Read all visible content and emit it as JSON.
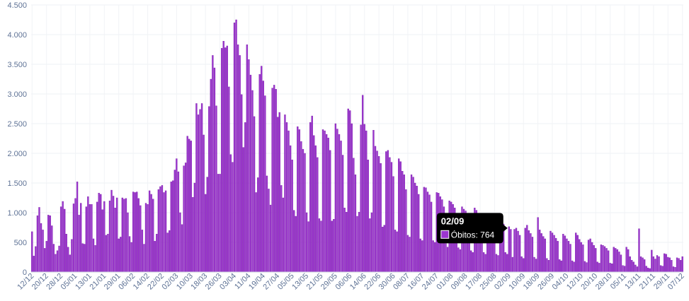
{
  "chart_data": {
    "type": "bar",
    "color": "#9b35cf",
    "ylim": [
      0,
      4500
    ],
    "yticks": [
      0,
      500,
      {
        "value": 1000,
        "label": "1.000"
      },
      {
        "value": 1500,
        "label": "1.500"
      },
      {
        "value": 2000,
        "label": "2.000"
      },
      {
        "value": 2500,
        "label": "2.500"
      },
      {
        "value": 3000,
        "label": "3.000"
      },
      {
        "value": 3500,
        "label": "3.500"
      },
      {
        "value": 4000,
        "label": "4.000"
      },
      {
        "value": 4500,
        "label": "4.500"
      }
    ],
    "grid": true,
    "tooltip": {
      "date": "02/09",
      "text": "Óbitos: 764",
      "index": 264
    },
    "categories": [
      "12/12",
      null,
      null,
      null,
      null,
      null,
      null,
      null,
      "20/12",
      null,
      null,
      null,
      null,
      null,
      null,
      null,
      "28/12",
      null,
      null,
      null,
      null,
      null,
      null,
      null,
      "05/01",
      null,
      null,
      null,
      null,
      null,
      null,
      null,
      "13/01",
      null,
      null,
      null,
      null,
      null,
      null,
      null,
      "21/01",
      null,
      null,
      null,
      null,
      null,
      null,
      null,
      "29/01",
      null,
      null,
      null,
      null,
      null,
      null,
      null,
      "06/02",
      null,
      null,
      null,
      null,
      null,
      null,
      null,
      "14/02",
      null,
      null,
      null,
      null,
      null,
      null,
      null,
      "22/02",
      null,
      null,
      null,
      null,
      null,
      null,
      null,
      "02/03",
      null,
      null,
      null,
      null,
      null,
      null,
      null,
      "10/03",
      null,
      null,
      null,
      null,
      null,
      null,
      null,
      "18/03",
      null,
      null,
      null,
      null,
      null,
      null,
      null,
      "26/03",
      null,
      null,
      null,
      null,
      null,
      null,
      null,
      "03/04",
      null,
      null,
      null,
      null,
      null,
      null,
      null,
      "11/04",
      null,
      null,
      null,
      null,
      null,
      null,
      null,
      "19/04",
      null,
      null,
      null,
      null,
      null,
      null,
      null,
      "27/04",
      null,
      null,
      null,
      null,
      null,
      null,
      null,
      "05/05",
      null,
      null,
      null,
      null,
      null,
      null,
      null,
      "13/05",
      null,
      null,
      null,
      null,
      null,
      null,
      null,
      "21/05",
      null,
      null,
      null,
      null,
      null,
      null,
      null,
      "29/05",
      null,
      null,
      null,
      null,
      null,
      null,
      null,
      "06/06",
      null,
      null,
      null,
      null,
      null,
      null,
      null,
      "14/06",
      null,
      null,
      null,
      null,
      null,
      null,
      null,
      "22/06",
      null,
      null,
      null,
      null,
      null,
      null,
      null,
      "30/06",
      null,
      null,
      null,
      null,
      null,
      null,
      null,
      "08/07",
      null,
      null,
      null,
      null,
      null,
      null,
      null,
      "16/07",
      null,
      null,
      null,
      null,
      null,
      null,
      null,
      "24/07",
      null,
      null,
      null,
      null,
      null,
      null,
      null,
      "01/08",
      null,
      null,
      null,
      null,
      null,
      null,
      null,
      "09/08",
      null,
      null,
      null,
      null,
      null,
      null,
      null,
      "17/08",
      null,
      null,
      null,
      null,
      null,
      null,
      null,
      "25/08",
      null,
      null,
      null,
      null,
      null,
      null,
      null,
      "02/09",
      null,
      null,
      null,
      null,
      null,
      null,
      null,
      "10/09",
      null,
      null,
      null,
      null,
      null,
      null,
      null,
      "18/09",
      null,
      null,
      null,
      null,
      null,
      null,
      null,
      "26/09",
      null,
      null,
      null,
      null,
      null,
      null,
      null,
      "04/10",
      null,
      null,
      null,
      null,
      null,
      null,
      null,
      "12/10",
      null,
      null,
      null,
      null,
      null,
      null,
      null,
      "20/10",
      null,
      null,
      null,
      null,
      null,
      null,
      null,
      "28/10",
      null,
      null,
      null,
      null,
      null,
      null,
      null,
      "05/11",
      null,
      null,
      null,
      null,
      null,
      null,
      null,
      "13/11",
      null,
      null,
      null,
      null,
      null,
      null,
      null,
      "21/11",
      null,
      null,
      null,
      null,
      null,
      null,
      null,
      "29/11",
      null,
      null,
      null,
      null,
      null,
      null,
      null,
      "07/12"
    ],
    "values": [
      680,
      270,
      430,
      950,
      1090,
      820,
      710,
      400,
      520,
      960,
      950,
      780,
      470,
      300,
      360,
      440,
      1100,
      1190,
      1060,
      640,
      420,
      290,
      550,
      1150,
      1240,
      1520,
      960,
      1160,
      480,
      470,
      1100,
      1270,
      1140,
      1140,
      560,
      450,
      1180,
      1330,
      1310,
      1050,
      1190,
      620,
      640,
      1200,
      1380,
      1280,
      1080,
      1250,
      560,
      590,
      1250,
      1230,
      1240,
      1000,
      600,
      500,
      1350,
      1340,
      1350,
      1240,
      1120,
      710,
      470,
      1160,
      1140,
      1370,
      1310,
      1230,
      520,
      640,
      1390,
      1440,
      1460,
      1340,
      1370,
      660,
      700,
      1520,
      1540,
      1720,
      1910,
      1690,
      1000,
      800,
      1790,
      1840,
      2290,
      2240,
      2210,
      1260,
      1500,
      2840,
      2650,
      2740,
      2840,
      2310,
      1310,
      1600,
      2790,
      3250,
      3650,
      3440,
      2800,
      1650,
      1650,
      3770,
      3890,
      3780,
      3810,
      3120,
      1980,
      1850,
      4200,
      4250,
      3830,
      3650,
      2990,
      2100,
      2520,
      3830,
      3580,
      3320,
      3060,
      2620,
      1340,
      1590,
      3330,
      3470,
      3220,
      2970,
      1620,
      1400,
      1130,
      3100,
      3150,
      3080,
      2610,
      2690,
      1460,
      1250,
      2650,
      2520,
      2380,
      2130,
      1890,
      1040,
      940,
      2450,
      2400,
      2200,
      2070,
      2000,
      1000,
      850,
      2520,
      2630,
      2300,
      2130,
      1930,
      900,
      860,
      2400,
      2380,
      2320,
      2260,
      2050,
      860,
      890,
      2500,
      2410,
      2320,
      2210,
      1970,
      1080,
      1010,
      2750,
      2720,
      2500,
      1920,
      1640,
      940,
      1010,
      2480,
      2980,
      2490,
      2380,
      1890,
      900,
      1000,
      2390,
      2120,
      2040,
      1950,
      1830,
      760,
      790,
      2030,
      2050,
      1930,
      1850,
      1610,
      710,
      680,
      1910,
      1860,
      1700,
      1640,
      1390,
      620,
      590,
      1640,
      1600,
      1500,
      1450,
      1310,
      560,
      530,
      1430,
      1420,
      1350,
      1300,
      1180,
      530,
      500,
      1340,
      1330,
      1270,
      1220,
      1100,
      480,
      420,
      1200,
      1180,
      1140,
      1080,
      950,
      410,
      380,
      1100,
      1060,
      1030,
      970,
      880,
      360,
      330,
      1080,
      1040,
      970,
      900,
      830,
      330,
      300,
      960,
      930,
      880,
      830,
      760,
      300,
      280,
      900,
      860,
      810,
      330,
      300,
      764,
      720,
      250,
      720,
      740,
      690,
      620,
      260,
      230,
      740,
      790,
      700,
      650,
      590,
      250,
      220,
      920,
      710,
      650,
      600,
      560,
      230,
      200,
      690,
      660,
      620,
      570,
      520,
      210,
      190,
      640,
      610,
      560,
      520,
      470,
      190,
      170,
      660,
      620,
      550,
      500,
      460,
      180,
      160,
      540,
      560,
      500,
      450,
      400,
      170,
      150,
      460,
      450,
      430,
      400,
      360,
      150,
      140,
      420,
      400,
      380,
      340,
      290,
      110,
      100,
      420,
      380,
      260,
      200,
      170,
      120,
      90,
      730,
      260,
      240,
      210,
      100,
      70,
      60,
      370,
      260,
      220,
      280,
      260,
      110,
      100,
      310,
      300,
      250,
      240,
      200,
      90,
      80,
      240,
      230,
      200,
      260
    ]
  }
}
